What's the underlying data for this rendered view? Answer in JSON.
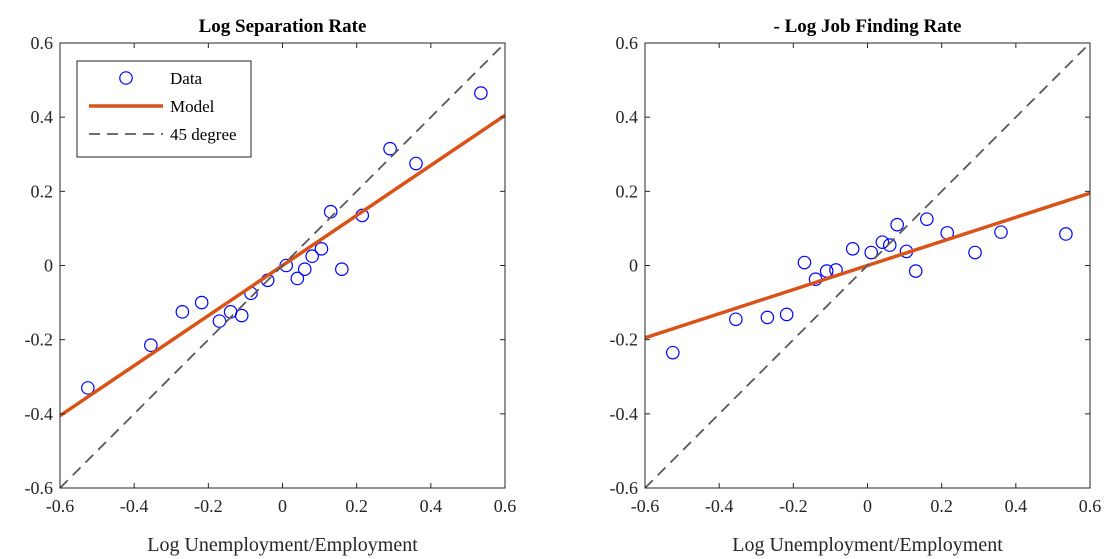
{
  "chart_data": [
    {
      "type": "scatter",
      "title": "Log Separation Rate",
      "xlabel": "Log Unemployment/Employment",
      "ylabel": "",
      "xlim": [
        -0.6,
        0.6
      ],
      "ylim": [
        -0.6,
        0.6
      ],
      "xticks": [
        -0.6,
        -0.4,
        -0.2,
        0,
        0.2,
        0.4,
        0.6
      ],
      "yticks": [
        -0.6,
        -0.4,
        -0.2,
        0,
        0.2,
        0.4,
        0.6
      ],
      "xtick_labels": [
        "-0.6",
        "-0.4",
        "-0.2",
        "0",
        "0.2",
        "0.4",
        "0.6"
      ],
      "ytick_labels": [
        "-0.6",
        "-0.4",
        "-0.2",
        "0",
        "0.2",
        "0.4",
        "0.6"
      ],
      "grid": false,
      "legend": {
        "placement": "top-left",
        "entries": [
          {
            "label": "Data",
            "style": "circle-marker",
            "color": "#0000ff"
          },
          {
            "label": "Model",
            "style": "solid-line",
            "color": "#d95319"
          },
          {
            "label": "45 degree",
            "style": "dashed-line",
            "color": "#595959"
          }
        ]
      },
      "series": [
        {
          "name": "Data",
          "style": "circle-marker",
          "color": "#0000ff",
          "points": [
            [
              -0.525,
              -0.33
            ],
            [
              -0.355,
              -0.215
            ],
            [
              -0.27,
              -0.125
            ],
            [
              -0.218,
              -0.1
            ],
            [
              -0.17,
              -0.15
            ],
            [
              -0.14,
              -0.125
            ],
            [
              -0.11,
              -0.135
            ],
            [
              -0.085,
              -0.075
            ],
            [
              -0.04,
              -0.04
            ],
            [
              0.01,
              0.0
            ],
            [
              0.04,
              -0.035
            ],
            [
              0.06,
              -0.01
            ],
            [
              0.08,
              0.025
            ],
            [
              0.105,
              0.045
            ],
            [
              0.13,
              0.145
            ],
            [
              0.16,
              -0.01
            ],
            [
              0.215,
              0.135
            ],
            [
              0.29,
              0.315
            ],
            [
              0.36,
              0.275
            ],
            [
              0.535,
              0.465
            ]
          ]
        },
        {
          "name": "Model",
          "style": "solid-line",
          "color": "#d95319",
          "points": [
            [
              -0.6,
              -0.405
            ],
            [
              0.6,
              0.405
            ]
          ]
        },
        {
          "name": "45 degree",
          "style": "dashed-line",
          "color": "#595959",
          "points": [
            [
              -0.6,
              -0.6
            ],
            [
              0.6,
              0.6
            ]
          ]
        }
      ]
    },
    {
      "type": "scatter",
      "title": "- Log Job Finding Rate",
      "xlabel": "Log Unemployment/Employment",
      "ylabel": "",
      "xlim": [
        -0.6,
        0.6
      ],
      "ylim": [
        -0.6,
        0.6
      ],
      "xticks": [
        -0.6,
        -0.4,
        -0.2,
        0,
        0.2,
        0.4,
        0.6
      ],
      "yticks": [
        -0.6,
        -0.4,
        -0.2,
        0,
        0.2,
        0.4,
        0.6
      ],
      "xtick_labels": [
        "-0.6",
        "-0.4",
        "-0.2",
        "0",
        "0.2",
        "0.4",
        "0.6"
      ],
      "ytick_labels": [
        "-0.6",
        "-0.4",
        "-0.2",
        "0",
        "0.2",
        "0.4",
        "0.6"
      ],
      "grid": false,
      "series": [
        {
          "name": "Data",
          "style": "circle-marker",
          "color": "#0000ff",
          "points": [
            [
              -0.525,
              -0.235
            ],
            [
              -0.355,
              -0.145
            ],
            [
              -0.27,
              -0.14
            ],
            [
              -0.218,
              -0.132
            ],
            [
              -0.17,
              0.008
            ],
            [
              -0.14,
              -0.037
            ],
            [
              -0.11,
              -0.015
            ],
            [
              -0.085,
              -0.012
            ],
            [
              -0.04,
              0.045
            ],
            [
              0.01,
              0.035
            ],
            [
              0.04,
              0.063
            ],
            [
              0.06,
              0.055
            ],
            [
              0.08,
              0.11
            ],
            [
              0.105,
              0.038
            ],
            [
              0.13,
              -0.015
            ],
            [
              0.16,
              0.125
            ],
            [
              0.215,
              0.088
            ],
            [
              0.29,
              0.035
            ],
            [
              0.36,
              0.09
            ],
            [
              0.535,
              0.085
            ]
          ]
        },
        {
          "name": "Model",
          "style": "solid-line",
          "color": "#d95319",
          "points": [
            [
              -0.6,
              -0.195
            ],
            [
              0.6,
              0.195
            ]
          ]
        },
        {
          "name": "45 degree",
          "style": "dashed-line",
          "color": "#595959",
          "points": [
            [
              -0.6,
              -0.6
            ],
            [
              0.6,
              0.6
            ]
          ]
        }
      ]
    }
  ]
}
